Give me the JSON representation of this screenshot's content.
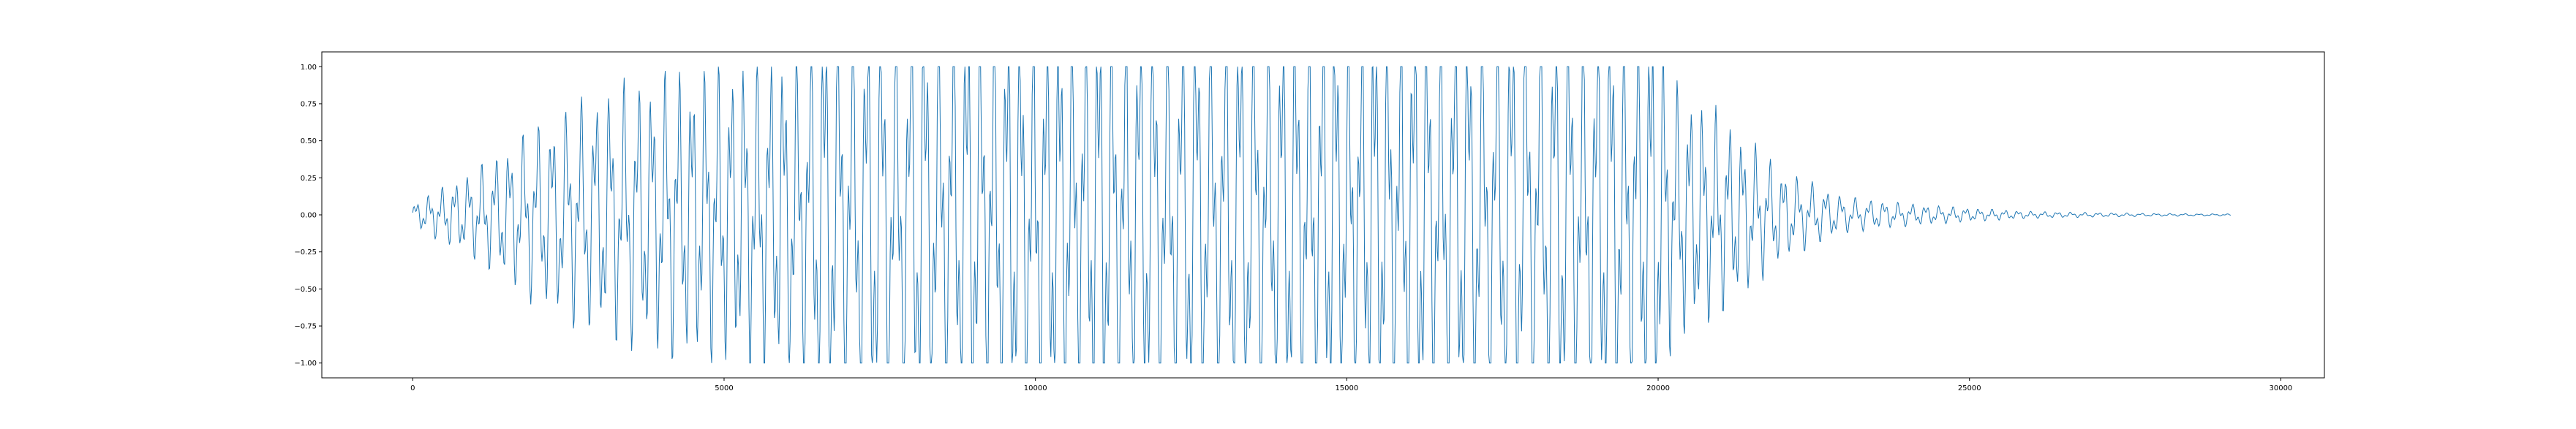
{
  "chart_data": {
    "type": "line",
    "title": "",
    "xlabel": "",
    "ylabel": "",
    "xlim": [
      -1460,
      30700
    ],
    "ylim": [
      -1.1,
      1.1
    ],
    "x_ticks": [
      0,
      5000,
      10000,
      15000,
      20000,
      25000,
      30000
    ],
    "x_tick_labels": [
      "0",
      "5000",
      "10000",
      "15000",
      "20000",
      "25000",
      "30000"
    ],
    "y_ticks": [
      -1.0,
      -0.75,
      -0.5,
      -0.25,
      0.0,
      0.25,
      0.5,
      0.75,
      1.0
    ],
    "y_tick_labels": [
      "−1.00",
      "−0.75",
      "−0.50",
      "−0.25",
      "0.00",
      "0.25",
      "0.50",
      "0.75",
      "1.00"
    ],
    "grid": false,
    "legend": "none",
    "series_color": "#1f77b4",
    "series": [
      {
        "n_samples": 29200,
        "envelope_x": [
          0,
          1000,
          2000,
          3000,
          4000,
          5000,
          6000,
          6400,
          6600,
          7000,
          8000,
          9000,
          10000,
          11000,
          12000,
          13000,
          14000,
          15000,
          16000,
          17000,
          17600,
          18000,
          19000,
          20000,
          20200,
          21000,
          22000,
          23000,
          24000,
          25000,
          26000,
          27000,
          28000,
          29200
        ],
        "envelope_amplitude": [
          0.05,
          0.2,
          0.4,
          0.55,
          0.63,
          0.67,
          0.75,
          0.9,
          1.0,
          1.0,
          1.0,
          1.0,
          1.0,
          1.0,
          1.0,
          1.0,
          1.0,
          1.0,
          1.0,
          1.0,
          1.0,
          1.0,
          1.0,
          1.0,
          0.6,
          0.45,
          0.2,
          0.08,
          0.05,
          0.03,
          0.015,
          0.01,
          0.006,
          0.004
        ]
      }
    ]
  }
}
